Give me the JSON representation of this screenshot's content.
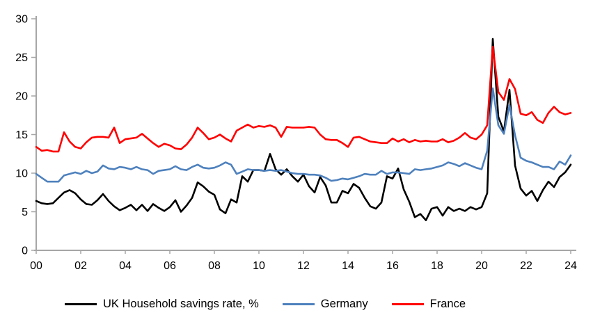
{
  "chart_data": {
    "type": "line",
    "title": "",
    "xlabel": "",
    "ylabel": "",
    "frequency": "quarterly",
    "x_start_year": 2000,
    "x_step_years": 0.25,
    "x_end_year": 2024,
    "xlim": [
      2000,
      2024.3
    ],
    "ylim": [
      0,
      30
    ],
    "y_ticks": [
      0,
      5,
      10,
      15,
      20,
      25,
      30
    ],
    "x_tick_labels": [
      "00",
      "02",
      "04",
      "06",
      "08",
      "10",
      "12",
      "14",
      "16",
      "18",
      "20",
      "22",
      "24"
    ],
    "grid": false,
    "legend_position": "bottom",
    "axis_color": "#a6a6a6",
    "text_color": "#000000",
    "background_color": "#ffffff",
    "series": [
      {
        "name": "UK Household savings rate, %",
        "color": "#000000",
        "values": [
          6.4,
          6.1,
          6.0,
          6.1,
          6.8,
          7.5,
          7.8,
          7.4,
          6.6,
          6.0,
          5.9,
          6.5,
          7.3,
          6.4,
          5.7,
          5.2,
          5.5,
          5.9,
          5.2,
          5.9,
          5.1,
          6.0,
          5.5,
          5.1,
          5.6,
          6.5,
          5.0,
          5.8,
          6.8,
          8.8,
          8.3,
          7.6,
          7.2,
          5.3,
          4.8,
          6.6,
          6.2,
          9.6,
          8.9,
          10.4,
          10.4,
          10.3,
          12.5,
          10.5,
          9.8,
          10.5,
          9.6,
          8.9,
          9.8,
          8.3,
          7.5,
          9.5,
          8.4,
          6.2,
          6.2,
          7.7,
          7.4,
          8.6,
          8.1,
          6.8,
          5.7,
          5.4,
          6.2,
          9.6,
          9.3,
          10.6,
          7.9,
          6.3,
          4.3,
          4.7,
          3.9,
          5.4,
          5.6,
          4.5,
          5.6,
          5.1,
          5.4,
          5.1,
          5.6,
          5.3,
          5.6,
          7.4,
          27.4,
          17.3,
          15.4,
          20.8,
          11.0,
          8.0,
          7.1,
          7.7,
          6.4,
          7.8,
          8.9,
          8.2,
          9.5,
          10.1,
          11.1
        ]
      },
      {
        "name": "Germany",
        "color": "#4e81bd",
        "values": [
          9.9,
          9.4,
          8.9,
          8.9,
          8.9,
          9.7,
          9.9,
          10.1,
          9.9,
          10.3,
          10.0,
          10.2,
          11.0,
          10.6,
          10.5,
          10.8,
          10.7,
          10.5,
          10.8,
          10.5,
          10.4,
          9.9,
          10.3,
          10.4,
          10.5,
          10.9,
          10.5,
          10.4,
          10.8,
          11.1,
          10.7,
          10.6,
          10.7,
          11.0,
          11.4,
          11.1,
          9.9,
          10.2,
          10.5,
          10.4,
          10.4,
          10.3,
          10.4,
          10.3,
          10.4,
          10.2,
          10.0,
          9.9,
          9.9,
          9.8,
          9.8,
          9.7,
          9.4,
          9.0,
          9.1,
          9.3,
          9.2,
          9.4,
          9.6,
          9.9,
          9.8,
          9.8,
          10.3,
          9.9,
          10.1,
          10.1,
          10.0,
          9.9,
          10.5,
          10.4,
          10.5,
          10.6,
          10.8,
          11.0,
          11.4,
          11.2,
          10.9,
          11.3,
          11.0,
          10.7,
          10.5,
          12.9,
          21.0,
          16.2,
          15.1,
          18.8,
          14.9,
          12.0,
          11.6,
          11.4,
          11.1,
          10.8,
          10.8,
          10.5,
          11.5,
          11.1,
          12.3
        ]
      },
      {
        "name": "France",
        "color": "#ff0000",
        "values": [
          13.4,
          12.9,
          13.0,
          12.8,
          12.8,
          15.3,
          14.1,
          13.4,
          13.2,
          14.0,
          14.6,
          14.7,
          14.7,
          14.6,
          15.9,
          13.9,
          14.4,
          14.5,
          14.6,
          15.1,
          14.5,
          13.9,
          13.4,
          13.8,
          13.6,
          13.2,
          13.1,
          13.7,
          14.6,
          15.9,
          15.2,
          14.4,
          14.6,
          15.0,
          14.5,
          14.1,
          15.5,
          15.9,
          16.3,
          15.9,
          16.1,
          16.0,
          16.2,
          15.9,
          14.7,
          16.0,
          15.9,
          15.9,
          15.9,
          16.0,
          15.9,
          15.0,
          14.4,
          14.3,
          14.3,
          13.9,
          13.4,
          14.6,
          14.7,
          14.4,
          14.1,
          14.0,
          13.9,
          13.9,
          14.5,
          14.1,
          14.4,
          14.0,
          14.3,
          14.1,
          14.2,
          14.1,
          14.1,
          14.4,
          14.0,
          14.2,
          14.6,
          15.2,
          14.6,
          14.4,
          15.0,
          16.2,
          26.4,
          20.5,
          19.5,
          22.2,
          20.9,
          17.7,
          17.5,
          17.9,
          16.9,
          16.5,
          17.8,
          18.6,
          17.9,
          17.6,
          17.8
        ]
      }
    ]
  }
}
